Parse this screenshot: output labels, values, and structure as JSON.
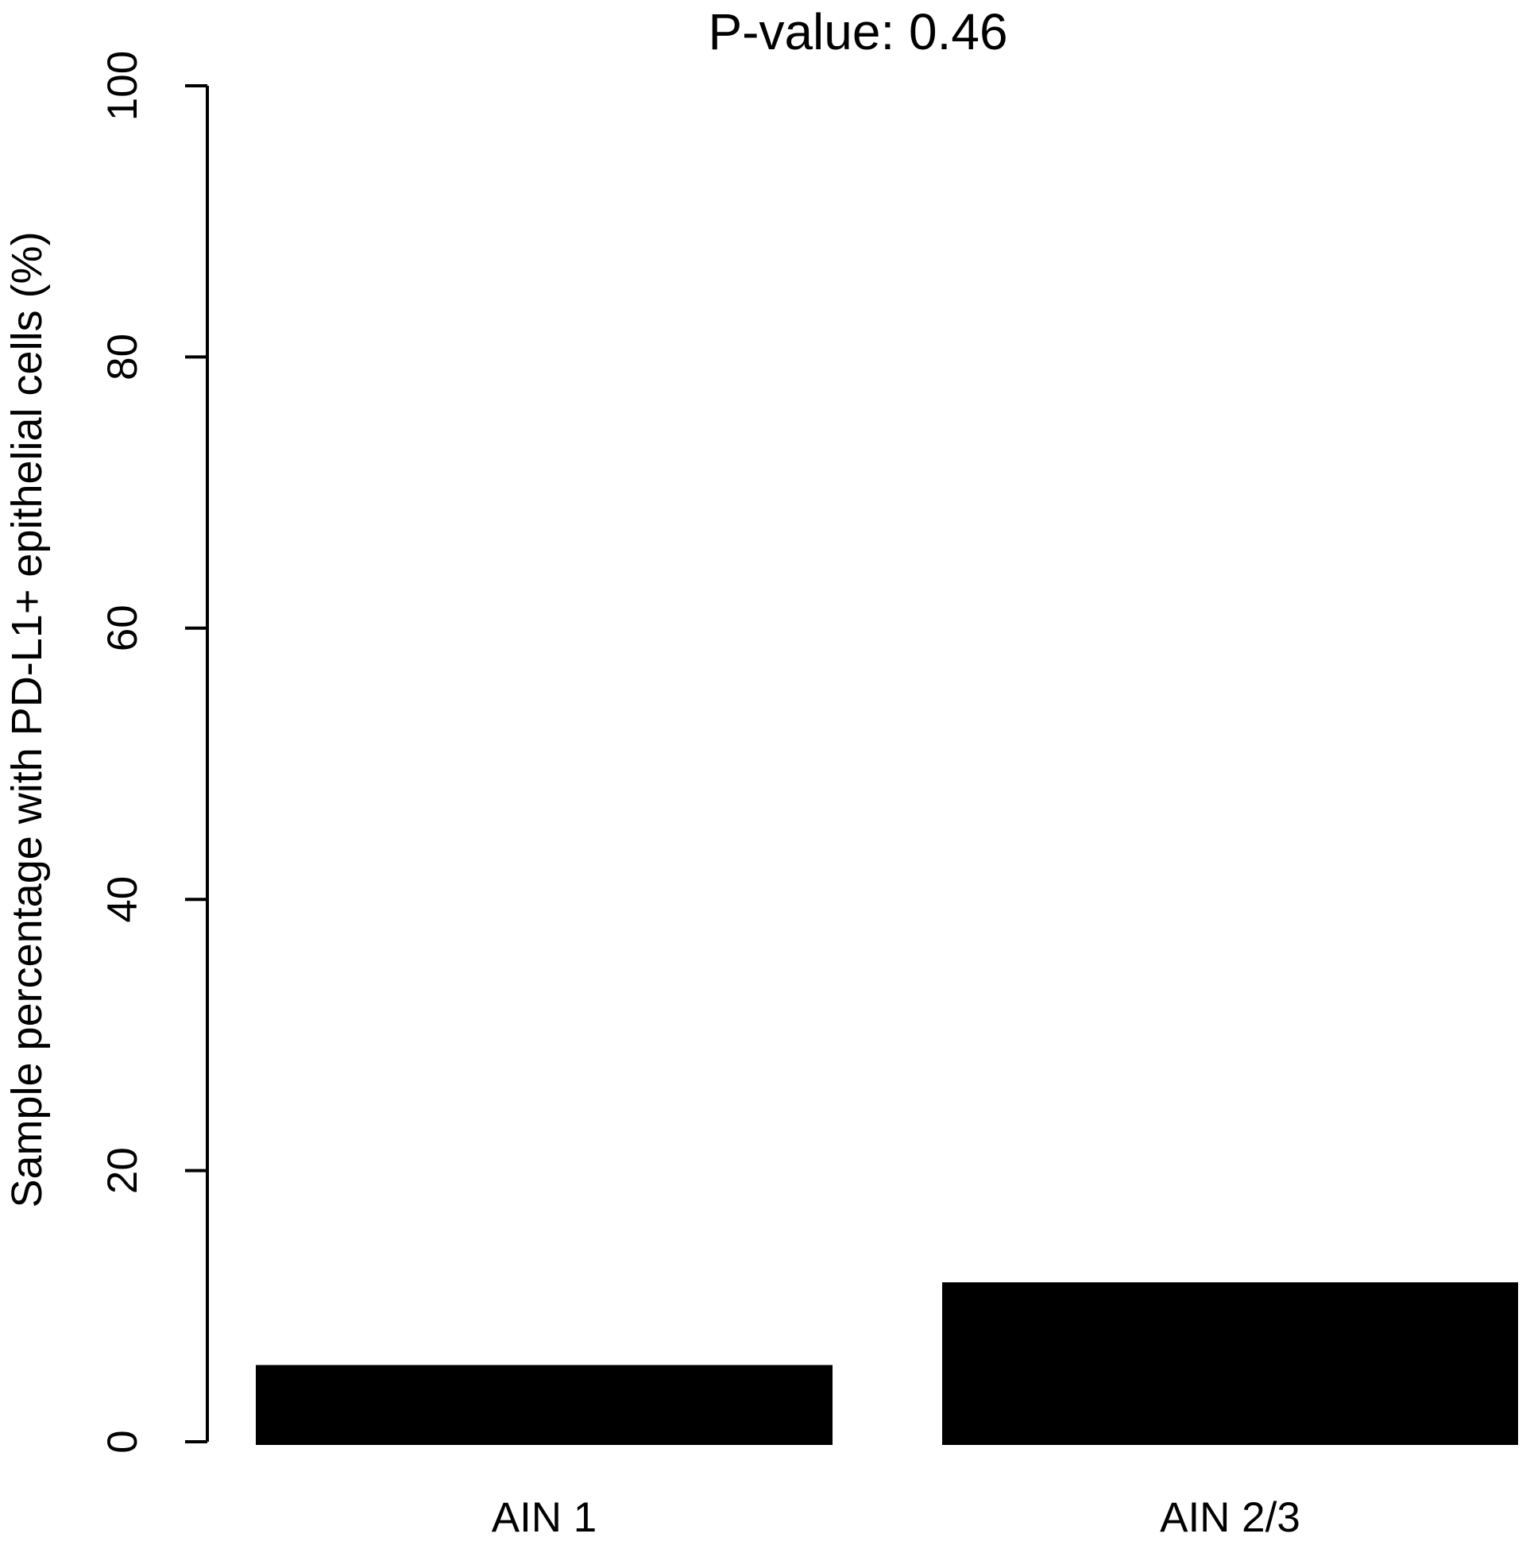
{
  "chart_data": {
    "type": "bar",
    "title": "P-value: 0.46",
    "ylabel": "Sample percentage with PD-L1+ epithelial cells (%)",
    "xlabel": "",
    "categories": [
      "AIN 1",
      "AIN 2/3"
    ],
    "values": [
      5.6,
      11.7
    ],
    "ylim": [
      0,
      100
    ],
    "yticks": [
      0,
      20,
      40,
      60,
      80,
      100
    ],
    "bar_color": "#000000",
    "axis_color": "#000000",
    "background_color": "#ffffff",
    "grid": false,
    "legend": null
  }
}
